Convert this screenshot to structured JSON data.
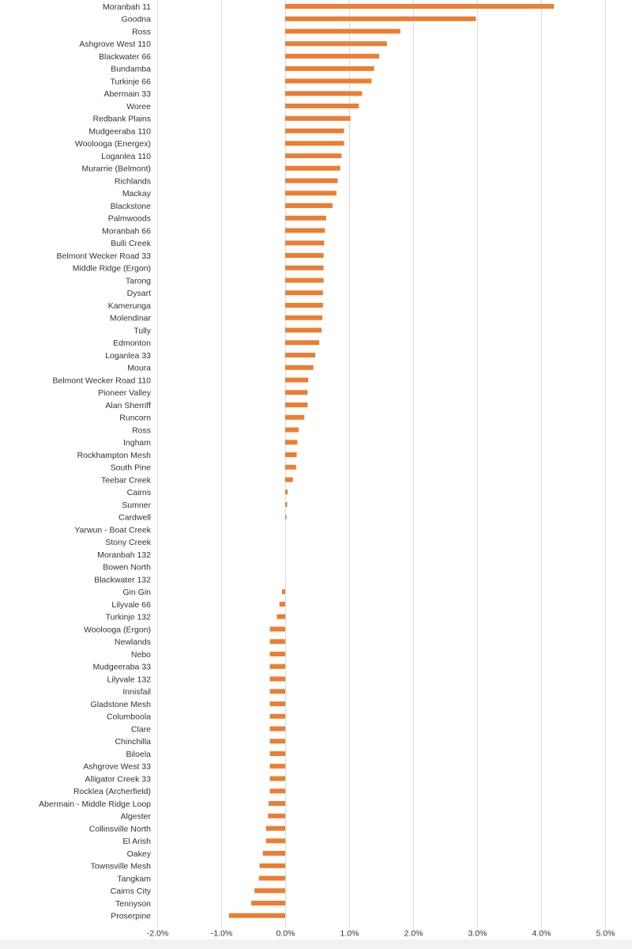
{
  "chart_data": {
    "type": "bar",
    "orientation": "horizontal",
    "title": "",
    "xlabel": "",
    "ylabel": "",
    "bar_color": "#ED7D31",
    "grid": true,
    "xlim": [
      -0.02,
      0.05
    ],
    "x_ticks": [
      -0.02,
      -0.01,
      0.0,
      0.01,
      0.02,
      0.03,
      0.04,
      0.05
    ],
    "x_tick_labels": [
      "-2.0%",
      "-1.0%",
      "0.0%",
      "1.0%",
      "2.0%",
      "3.0%",
      "4.0%",
      "5.0%"
    ],
    "categories": [
      "Moranbah 11",
      "Goodna",
      "Ross",
      "Ashgrove West 110",
      "Blackwater 66",
      "Bundamba",
      "Turkinje 66",
      "Abermain 33",
      "Woree",
      "Redbank Plains",
      "Mudgeeraba 110",
      "Woolooga (Energex)",
      "Loganlea 110",
      "Murarrie (Belmont)",
      "Richlands",
      "Mackay",
      "Blackstone",
      "Palmwoods",
      "Moranbah 66",
      "Bulli Creek",
      "Belmont Wecker Road 33",
      "Middle Ridge (Ergon)",
      "Tarong",
      "Dysart",
      "Kamerunga",
      "Molendinar",
      "Tully",
      "Edmonton",
      "Loganlea 33",
      "Moura",
      "Belmont Wecker Road 110",
      "Pioneer Valley",
      "Alan Sherriff",
      "Runcorn",
      "Ross",
      "Ingham",
      "Rockhampton Mesh",
      "South Pine",
      "Teebar Creek",
      "Cairns",
      "Sumner",
      "Cardwell",
      "Yarwun - Boat Creek",
      "Stony Creek",
      "Moranbah 132",
      "Bowen North",
      "Blackwater 132",
      "Gin Gin",
      "Lilyvale 66",
      "Turkinje 132",
      "Woolooga (Ergon)",
      "Newlands",
      "Nebo",
      "Mudgeeraba 33",
      "Lilyvale 132",
      "Innisfail",
      "Gladstone Mesh",
      "Columboola",
      "Clare",
      "Chinchilla",
      "Biloela",
      "Ashgrove West 33",
      "Alligator Creek 33",
      "Rocklea (Archerfield)",
      "Abermain - Middle Ridge Loop",
      "Algester",
      "Collinsville North",
      "El Arish",
      "Oakey",
      "Townsville Mesh",
      "Tangkam",
      "Cairns City",
      "Tennyson",
      "Proserpine"
    ],
    "values": [
      0.042,
      0.0298,
      0.018,
      0.0159,
      0.0147,
      0.0139,
      0.0135,
      0.012,
      0.0115,
      0.0102,
      0.0092,
      0.0092,
      0.0088,
      0.0086,
      0.0082,
      0.008,
      0.0074,
      0.0064,
      0.0062,
      0.0061,
      0.006,
      0.006,
      0.006,
      0.0059,
      0.0059,
      0.0058,
      0.0057,
      0.0053,
      0.0047,
      0.0044,
      0.0036,
      0.0035,
      0.0035,
      0.003,
      0.0021,
      0.0019,
      0.0018,
      0.0017,
      0.0012,
      0.0004,
      0.0003,
      0.0002,
      0.0,
      0.0,
      0.0,
      0.0,
      0.0,
      -0.0005,
      -0.0009,
      -0.0013,
      -0.0024,
      -0.0024,
      -0.0024,
      -0.0024,
      -0.0024,
      -0.0024,
      -0.0024,
      -0.0024,
      -0.0024,
      -0.0024,
      -0.0024,
      -0.0024,
      -0.0024,
      -0.0024,
      -0.0026,
      -0.0027,
      -0.003,
      -0.003,
      -0.0035,
      -0.004,
      -0.0041,
      -0.0048,
      -0.0053,
      -0.0088
    ]
  }
}
